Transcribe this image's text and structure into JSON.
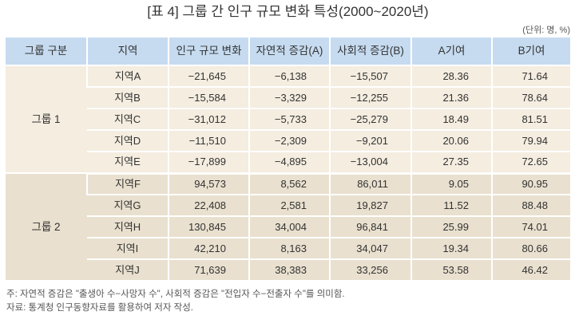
{
  "title": "[표 4] 그룹 간 인구 규모 변화 특성(2000~2020년)",
  "unit": "(단위: 명, %)",
  "colors": {
    "header_bg": "#c6dbf0",
    "group1_bg": "#f4ede0",
    "group2_bg": "#e9e0cf"
  },
  "table": {
    "headers": [
      "그룹 구분",
      "지역",
      "인구 규모 변화",
      "자연적 증감(A)",
      "사회적 증감(B)",
      "A기여",
      "B기여"
    ],
    "groups": [
      {
        "label": "그룹 1",
        "rows": [
          [
            "지역A",
            "−21,645",
            "−6,138",
            "−15,507",
            "28.36",
            "71.64"
          ],
          [
            "지역B",
            "−15,584",
            "−3,329",
            "−12,255",
            "21.36",
            "78.64"
          ],
          [
            "지역C",
            "−31,012",
            "−5,733",
            "−25,279",
            "18.49",
            "81.51"
          ],
          [
            "지역D",
            "−11,510",
            "−2,309",
            "−9,201",
            "20.06",
            "79.94"
          ],
          [
            "지역E",
            "−17,899",
            "−4,895",
            "−13,004",
            "27.35",
            "72.65"
          ]
        ]
      },
      {
        "label": "그룹 2",
        "rows": [
          [
            "지역F",
            "94,573",
            "8,562",
            "86,011",
            "9.05",
            "90.95"
          ],
          [
            "지역G",
            "22,408",
            "2,581",
            "19,827",
            "11.52",
            "88.48"
          ],
          [
            "지역H",
            "130,845",
            "34,004",
            "96,841",
            "25.99",
            "74.01"
          ],
          [
            "지역I",
            "42,210",
            "8,163",
            "34,047",
            "19.34",
            "80.66"
          ],
          [
            "지역J",
            "71,639",
            "38,383",
            "33,256",
            "53.58",
            "46.42"
          ]
        ]
      }
    ]
  },
  "notes": [
    "주: 자연적 증감은 \"출생아 수−사망자 수\", 사회적 증감은 \"전입자 수−전출자 수\"를 의미함.",
    "자료: 통계청 인구동향자료를 활용하여 저자 작성."
  ]
}
